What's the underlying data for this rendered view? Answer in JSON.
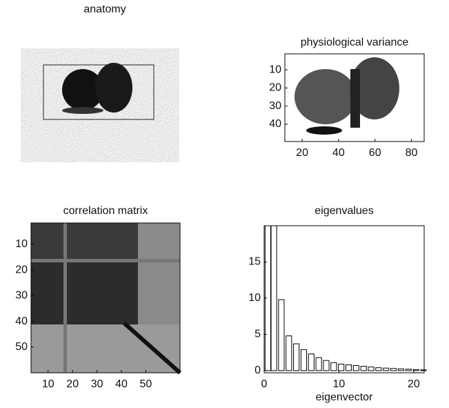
{
  "chart_data": [
    {
      "type": "image",
      "title": "anatomy"
    },
    {
      "type": "image",
      "title": "physiological variance",
      "xlim": [
        10.5,
        87
      ],
      "ylim": [
        1.2,
        49.5
      ],
      "xticks": [
        20,
        40,
        60,
        80
      ],
      "yticks": [
        10,
        20,
        30,
        40
      ]
    },
    {
      "type": "image",
      "title": "correlation matrix",
      "xlim": [
        3,
        64
      ],
      "ylim": [
        1.7,
        60
      ],
      "xticks": [
        10,
        20,
        30,
        40,
        50
      ],
      "yticks": [
        10,
        20,
        30,
        40,
        50
      ]
    },
    {
      "type": "bar",
      "title": "eigenvalues",
      "xlabel": "eigenvector",
      "color": "#ffffff",
      "x": [
        0.5,
        1.3,
        2.3,
        3.3,
        4.3,
        5.3,
        6.3,
        7.3,
        8.3,
        9.3,
        10.3,
        11.3,
        12.3,
        13.3,
        14.3,
        15.3,
        16.3,
        17.3,
        18.3,
        19.3,
        20.3,
        21.3
      ],
      "values": [
        20,
        20,
        9.8,
        4.8,
        3.7,
        2.9,
        2.3,
        1.8,
        1.4,
        1.1,
        0.9,
        0.8,
        0.7,
        0.6,
        0.5,
        0.4,
        0.35,
        0.3,
        0.25,
        0.2,
        0.15,
        0.1
      ],
      "xlim": [
        0,
        21.4
      ],
      "ylim": [
        -0.3,
        20
      ],
      "xticks": [
        0,
        10,
        20
      ],
      "yticks": [
        0,
        5,
        10,
        15
      ]
    }
  ]
}
